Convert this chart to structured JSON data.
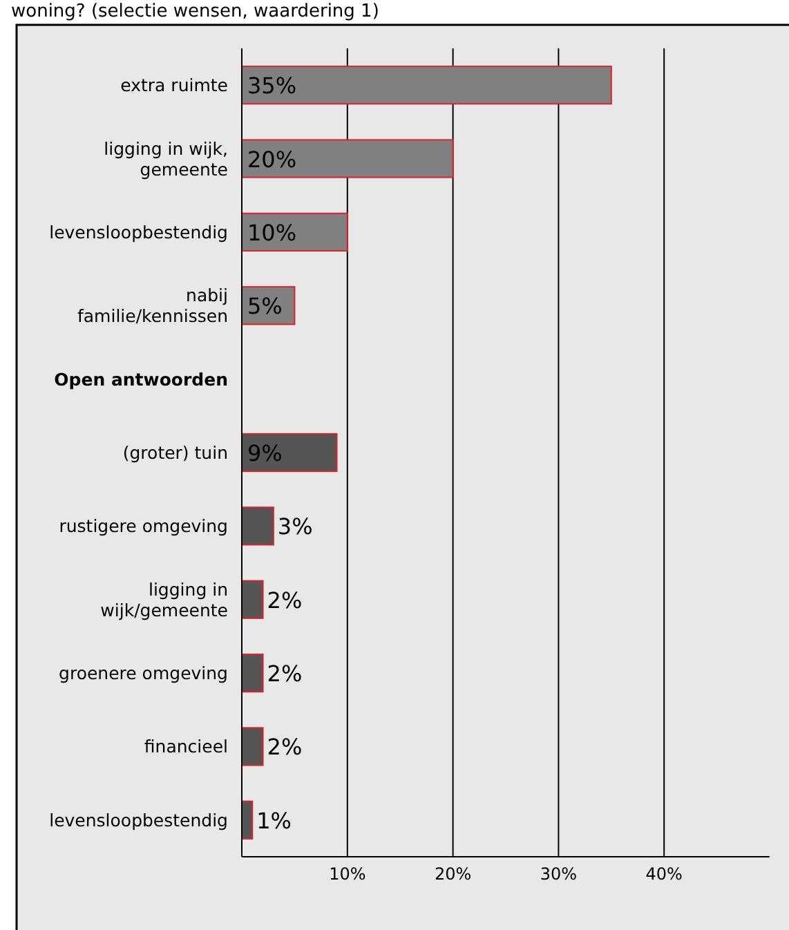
{
  "chart_data": {
    "type": "bar",
    "orientation": "horizontal",
    "title": "woning? (selectie wensen, waardering 1)",
    "categories": [
      "extra ruimte",
      "ligging in wijk, gemeente",
      "levensloopbestendig",
      "nabij familie/kennissen",
      "Open antwoorden",
      "(groter) tuin",
      "rustigere omgeving",
      "ligging in wijk/gemeente",
      "groenere omgeving",
      "financieel",
      "levensloopbestendig"
    ],
    "values": [
      35,
      20,
      10,
      5,
      null,
      9,
      3,
      2,
      2,
      2,
      1
    ],
    "colors": [
      "#808080",
      "#808080",
      "#808080",
      "#808080",
      null,
      "#555555",
      "#555555",
      "#555555",
      "#555555",
      "#555555",
      "#555555"
    ],
    "value_labels": [
      "35%",
      "20%",
      "10%",
      "5%",
      null,
      "9%",
      "3%",
      "2%",
      "2%",
      "2%",
      "1%"
    ],
    "xlim": [
      0,
      50
    ],
    "xticks": [
      {
        "value": 10,
        "label": "10%"
      },
      {
        "value": 20,
        "label": "20%"
      },
      {
        "value": 30,
        "label": "30%"
      },
      {
        "value": 40,
        "label": "40%"
      }
    ],
    "grid": "x"
  }
}
